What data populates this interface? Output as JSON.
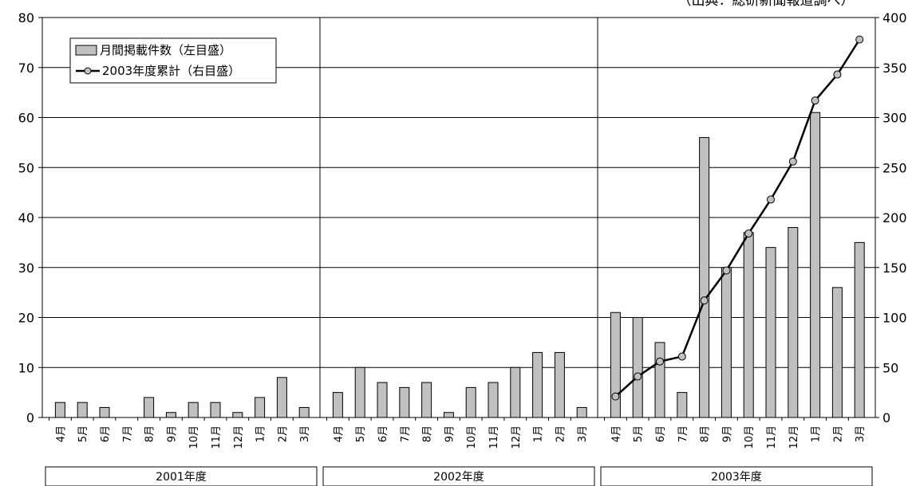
{
  "chart_data": {
    "type": "bar",
    "title": "（出典：総研新聞報道調べ）",
    "categories": [
      "4月",
      "5月",
      "6月",
      "7月",
      "8月",
      "9月",
      "10月",
      "11月",
      "12月",
      "1月",
      "2月",
      "3月"
    ],
    "groups": [
      {
        "label": "2001年度",
        "monthly": [
          3,
          3,
          2,
          0,
          4,
          1,
          3,
          3,
          1,
          4,
          8,
          2
        ]
      },
      {
        "label": "2002年度",
        "monthly": [
          5,
          10,
          7,
          6,
          7,
          1,
          6,
          7,
          10,
          13,
          13,
          2
        ]
      },
      {
        "label": "2003年度",
        "monthly": [
          21,
          20,
          15,
          5,
          56,
          30,
          37,
          34,
          38,
          61,
          26,
          35
        ]
      }
    ],
    "series": [
      {
        "name": "月間掲載件数（左目盛）",
        "type": "bar",
        "axis": "left"
      },
      {
        "name": "2003年度累計（右目盛）",
        "type": "line",
        "axis": "right",
        "group": "2003年度",
        "values": [
          21,
          41,
          56,
          61,
          117,
          147,
          184,
          218,
          256,
          317,
          343,
          378
        ]
      }
    ],
    "y_left": {
      "min": 0,
      "max": 80,
      "ticks": [
        0,
        10,
        20,
        30,
        40,
        50,
        60,
        70,
        80
      ]
    },
    "y_right": {
      "min": 0,
      "max": 400,
      "ticks": [
        0,
        50,
        100,
        150,
        200,
        250,
        300,
        350,
        400
      ]
    },
    "grid": true,
    "legend_position": "top-left",
    "colors": {
      "bar_fill": "#c0c0c0",
      "bar_stroke": "#000000",
      "line": "#000000",
      "marker_fill": "#c0c0c0",
      "grid": "#000000"
    }
  }
}
